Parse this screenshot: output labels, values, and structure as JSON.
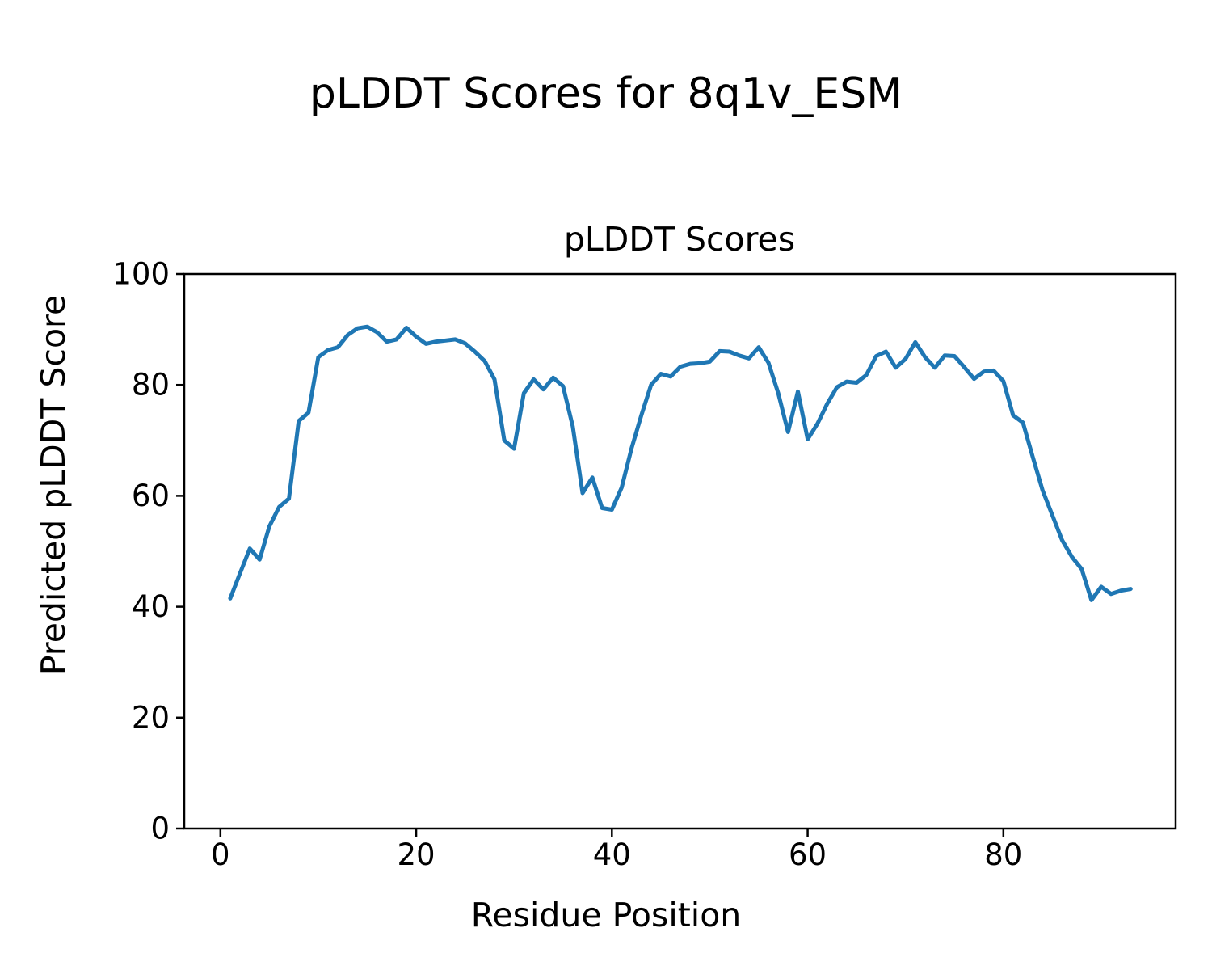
{
  "figure": {
    "suptitle": "pLDDT Scores for 8q1v_ESM"
  },
  "chart_data": {
    "type": "line",
    "title": "pLDDT Scores",
    "xlabel": "Residue Position",
    "ylabel": "Predicted pLDDT Score",
    "xlim": [
      -3.7,
      97.6
    ],
    "ylim": [
      0,
      100
    ],
    "x_ticks": [
      0,
      20,
      40,
      60,
      80
    ],
    "y_ticks": [
      0,
      20,
      40,
      60,
      80,
      100
    ],
    "grid": false,
    "legend": "none",
    "line_color": "#1f77b4",
    "axis_color": "#000000",
    "series": [
      {
        "name": "pLDDT",
        "x": [
          1,
          2,
          3,
          4,
          5,
          6,
          7,
          8,
          9,
          10,
          11,
          12,
          13,
          14,
          15,
          16,
          17,
          18,
          19,
          20,
          21,
          22,
          23,
          24,
          25,
          26,
          27,
          28,
          29,
          30,
          31,
          32,
          33,
          34,
          35,
          36,
          37,
          38,
          39,
          40,
          41,
          42,
          43,
          44,
          45,
          46,
          47,
          48,
          49,
          50,
          51,
          52,
          53,
          54,
          55,
          56,
          57,
          58,
          59,
          60,
          61,
          62,
          63,
          64,
          65,
          66,
          67,
          68,
          69,
          70,
          71,
          72,
          73,
          74,
          75,
          76,
          77,
          78,
          79,
          80,
          81,
          82,
          83,
          84,
          85,
          86,
          87,
          88,
          89,
          90,
          91,
          92,
          93
        ],
        "y": [
          41.5,
          46,
          50.5,
          48.5,
          54.5,
          58,
          59.5,
          73.5,
          75,
          85,
          86.3,
          86.8,
          89,
          90.2,
          90.5,
          89.5,
          87.8,
          88.2,
          90.3,
          88.7,
          87.4,
          87.8,
          88,
          88.2,
          87.5,
          86,
          84.3,
          81,
          70,
          68.5,
          78.5,
          81,
          79.2,
          81.3,
          79.8,
          72.5,
          60.5,
          63.3,
          57.8,
          57.5,
          61.5,
          68.5,
          74.5,
          80,
          82,
          81.5,
          83.3,
          83.8,
          83.9,
          84.2,
          86.1,
          86,
          85.3,
          84.8,
          86.8,
          84,
          78.5,
          71.5,
          78.8,
          70.2,
          73,
          76.6,
          79.6,
          80.6,
          80.4,
          81.8,
          85.2,
          86,
          83.1,
          84.7,
          87.7,
          85,
          83.1,
          85.3,
          85.2,
          83.2,
          81.1,
          82.4,
          82.6,
          80.7,
          74.5,
          73.2,
          67,
          61,
          56.5,
          52,
          49,
          46.8,
          41.2,
          43.6,
          42.3,
          42.9,
          43.2
        ]
      }
    ]
  }
}
